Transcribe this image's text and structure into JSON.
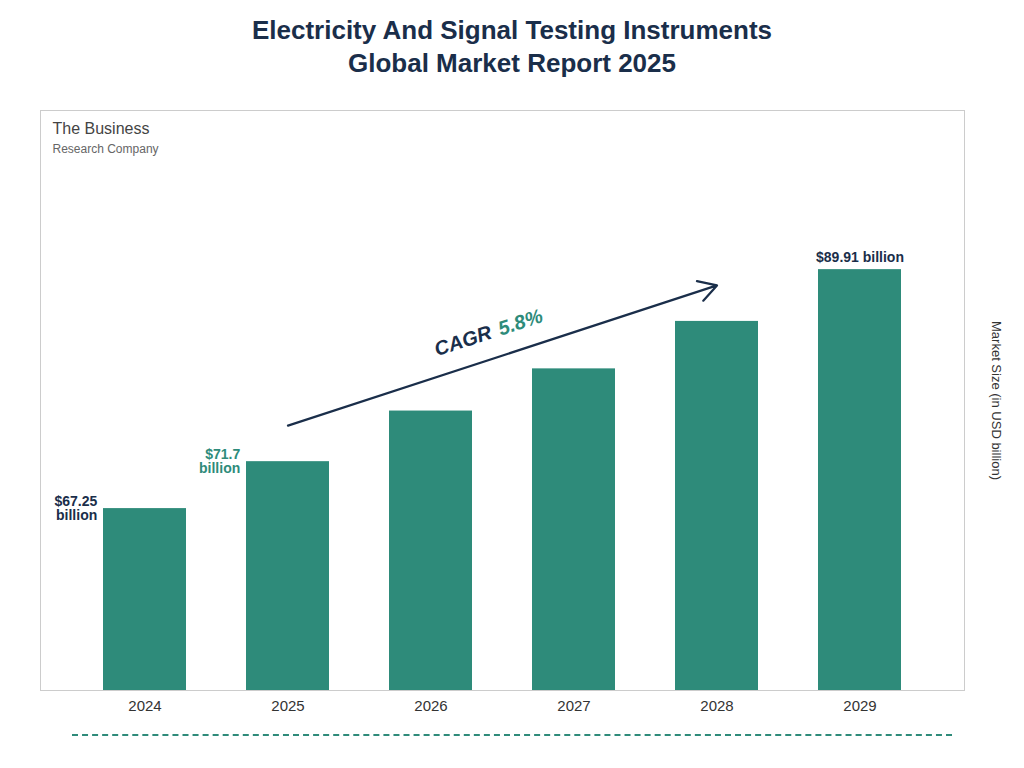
{
  "chart_data": {
    "type": "bar",
    "title": "Electricity And Signal Testing Instruments\nGlobal Market Report 2025",
    "ylabel": "Market Size (in USD billion)",
    "categories": [
      "2024",
      "2025",
      "2026",
      "2027",
      "2028",
      "2029"
    ],
    "values": [
      67.25,
      71.7,
      76.5,
      80.5,
      85.0,
      89.91
    ],
    "color": "#2e8b7a",
    "ylim": [
      50,
      105
    ],
    "grid": false,
    "tick_labels": "x",
    "annotations": [
      {
        "category": "2024",
        "text": "$67.25\nbillion",
        "color": "#1a2e4a"
      },
      {
        "category": "2025",
        "text": "$71.7\nbillion",
        "color": "#2e8b7a"
      },
      {
        "category": "2029",
        "text": "$89.91 billion",
        "color": "#1a2e4a"
      }
    ],
    "cagr": {
      "parts": [
        {
          "text": "CAGR",
          "color": "#1a2e4a"
        },
        {
          "text": "5.8%",
          "color": "#2e8b7a"
        }
      ],
      "arrow_color": "#1a2e4a"
    },
    "logo": [
      {
        "text": "The Business",
        "color": "#444444"
      },
      {
        "text": "Research Company",
        "color": "#666666"
      }
    ]
  }
}
